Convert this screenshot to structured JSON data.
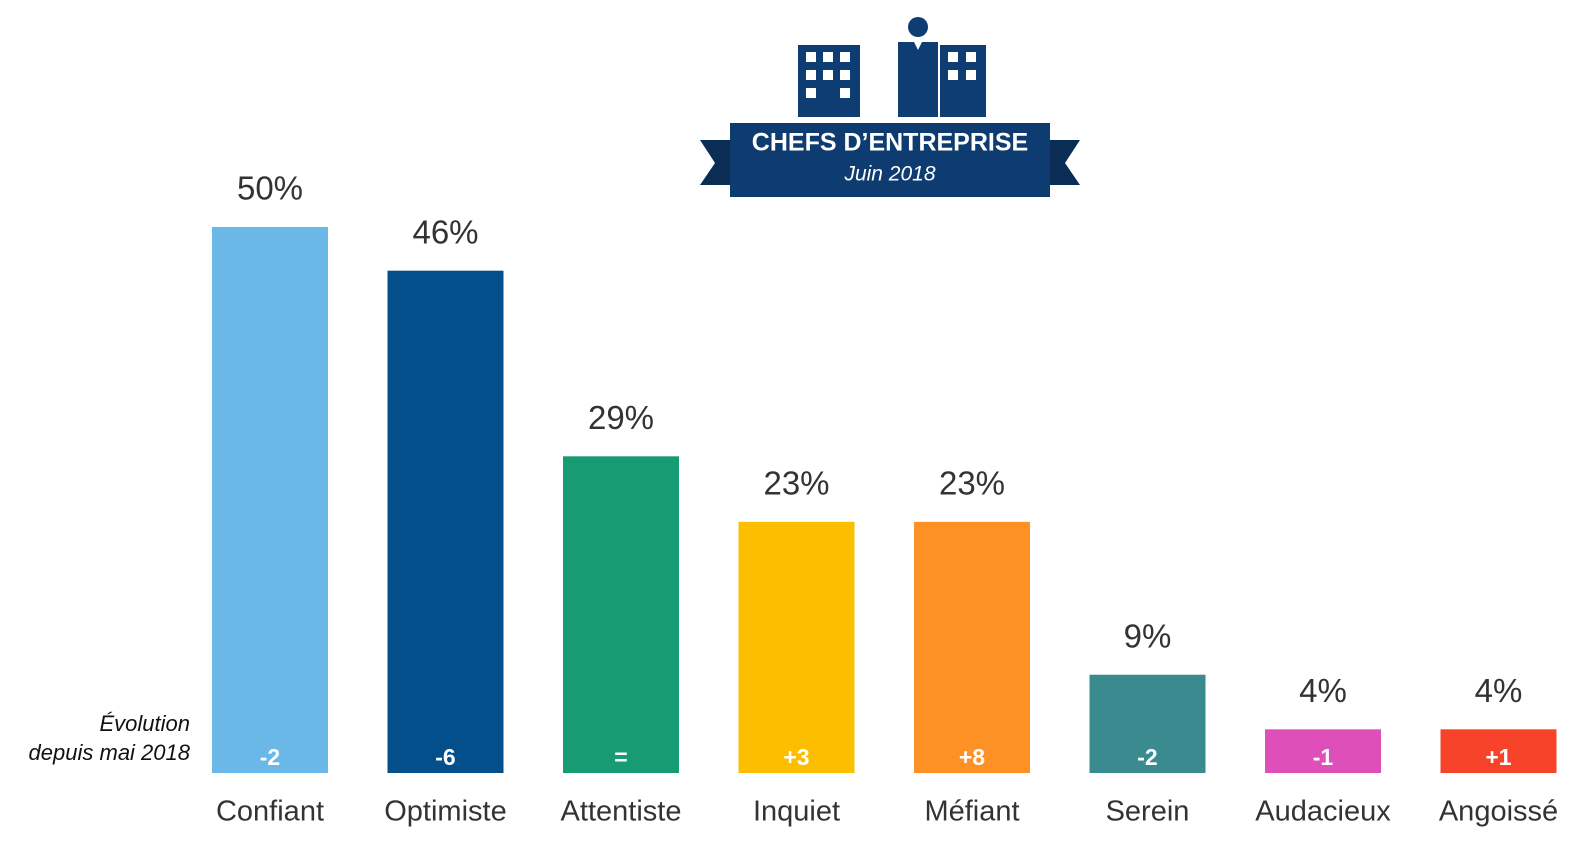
{
  "chart_data": {
    "type": "bar",
    "title": "CHEFS D’ENTREPRISE",
    "subtitle": "Juin 2018",
    "note": [
      "Évolution",
      "depuis mai 2018"
    ],
    "categories": [
      "Confiant",
      "Optimiste",
      "Attentiste",
      "Inquiet",
      "Méfiant",
      "Serein",
      "Audacieux",
      "Angoissé"
    ],
    "values": [
      50,
      46,
      29,
      23,
      23,
      9,
      4,
      4
    ],
    "value_labels": [
      "50%",
      "46%",
      "29%",
      "23%",
      "23%",
      "9%",
      "4%",
      "4%"
    ],
    "evolution_labels": [
      "-2",
      "-6",
      "=",
      "+3",
      "+8",
      "-2",
      "-1",
      "+1"
    ],
    "colors": [
      "#6ab8e8",
      "#024f8c",
      "#169b72",
      "#fbbf00",
      "#fd9125",
      "#3a8b8f",
      "#df4fb9",
      "#f8432b"
    ]
  }
}
